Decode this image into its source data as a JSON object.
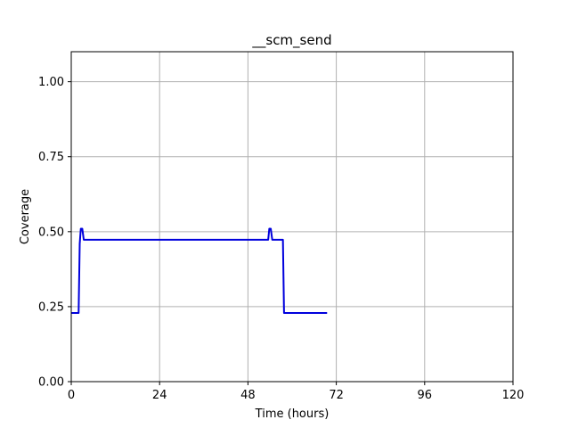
{
  "chart_data": {
    "type": "line",
    "title": "__scm_send",
    "xlabel": "Time (hours)",
    "ylabel": "Coverage",
    "xlim": [
      0,
      120
    ],
    "ylim": [
      0,
      1.1
    ],
    "xticks": [
      0,
      24,
      48,
      72,
      96,
      120
    ],
    "xtick_labels": [
      "0",
      "24",
      "48",
      "72",
      "96",
      "120"
    ],
    "yticks": [
      0,
      0.25,
      0.5,
      0.75,
      1.0
    ],
    "ytick_labels": [
      "0.00",
      "0.25",
      "0.50",
      "0.75",
      "1.00"
    ],
    "grid": true,
    "series": [
      {
        "color": "#0000dd",
        "x": [
          0,
          2.0,
          2.3,
          2.6,
          3.0,
          3.4,
          53.5,
          53.8,
          54.2,
          54.6,
          55.0,
          57.5,
          57.8,
          69.5
        ],
        "y": [
          0.229,
          0.229,
          0.46,
          0.51,
          0.51,
          0.473,
          0.473,
          0.51,
          0.51,
          0.473,
          0.473,
          0.473,
          0.229,
          0.229
        ]
      }
    ]
  }
}
